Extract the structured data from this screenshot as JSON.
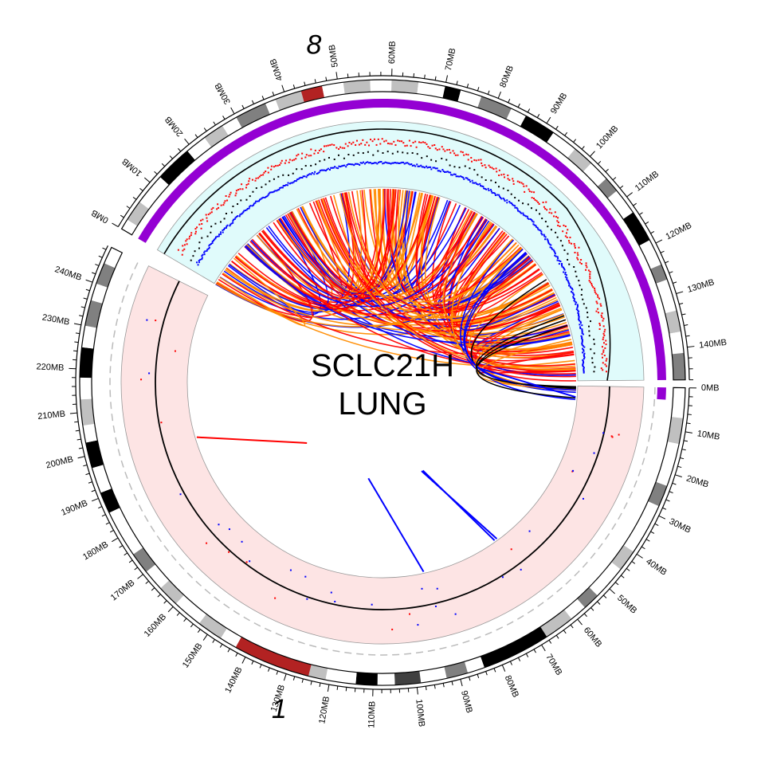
{
  "center": {
    "sample": "SCLC21H",
    "tissue": "LUNG"
  },
  "chromosomes": [
    {
      "name": "1",
      "label": "1",
      "length_mb": 249,
      "tick_labels": [
        "0MB",
        "10MB",
        "20MB",
        "30MB",
        "40MB",
        "50MB",
        "60MB",
        "70MB",
        "80MB",
        "90MB",
        "100MB",
        "110MB",
        "120MB",
        "130MB",
        "140MB",
        "150MB",
        "160MB",
        "170MB",
        "180MB",
        "190MB",
        "200MB",
        "210MB",
        "220MB",
        "230MB",
        "240MB"
      ],
      "bands": [
        {
          "s": 0,
          "e": 7,
          "c": "#ffffff"
        },
        {
          "s": 7,
          "e": 13,
          "c": "#c0c0c0"
        },
        {
          "s": 13,
          "e": 23,
          "c": "#ffffff"
        },
        {
          "s": 23,
          "e": 28,
          "c": "#808080"
        },
        {
          "s": 28,
          "e": 40,
          "c": "#ffffff"
        },
        {
          "s": 40,
          "e": 45,
          "c": "#c0c0c0"
        },
        {
          "s": 45,
          "e": 53,
          "c": "#ffffff"
        },
        {
          "s": 53,
          "e": 57,
          "c": "#808080"
        },
        {
          "s": 57,
          "e": 61,
          "c": "#ffffff"
        },
        {
          "s": 61,
          "e": 68,
          "c": "#c0c0c0"
        },
        {
          "s": 68,
          "e": 84,
          "c": "#000000"
        },
        {
          "s": 84,
          "e": 88,
          "c": "#ffffff"
        },
        {
          "s": 88,
          "e": 93,
          "c": "#808080"
        },
        {
          "s": 93,
          "e": 99,
          "c": "#ffffff"
        },
        {
          "s": 99,
          "e": 105,
          "c": "#404040"
        },
        {
          "s": 105,
          "e": 109,
          "c": "#ffffff"
        },
        {
          "s": 109,
          "e": 114,
          "c": "#000000"
        },
        {
          "s": 114,
          "e": 121,
          "c": "#ffffff"
        },
        {
          "s": 121,
          "e": 125,
          "c": "#c0c0c0"
        },
        {
          "s": 125,
          "e": 143,
          "c": "#b22222"
        },
        {
          "s": 143,
          "e": 147,
          "c": "#ffffff"
        },
        {
          "s": 147,
          "e": 153,
          "c": "#c0c0c0"
        },
        {
          "s": 153,
          "e": 160,
          "c": "#ffffff"
        },
        {
          "s": 160,
          "e": 165,
          "c": "#c0c0c0"
        },
        {
          "s": 165,
          "e": 170,
          "c": "#ffffff"
        },
        {
          "s": 170,
          "e": 175,
          "c": "#808080"
        },
        {
          "s": 175,
          "e": 186,
          "c": "#ffffff"
        },
        {
          "s": 186,
          "e": 191,
          "c": "#000000"
        },
        {
          "s": 191,
          "e": 197,
          "c": "#ffffff"
        },
        {
          "s": 197,
          "e": 203,
          "c": "#000000"
        },
        {
          "s": 203,
          "e": 207,
          "c": "#ffffff"
        },
        {
          "s": 207,
          "e": 213,
          "c": "#c0c0c0"
        },
        {
          "s": 213,
          "e": 218,
          "c": "#ffffff"
        },
        {
          "s": 218,
          "e": 225,
          "c": "#000000"
        },
        {
          "s": 225,
          "e": 230,
          "c": "#ffffff"
        },
        {
          "s": 230,
          "e": 236,
          "c": "#808080"
        },
        {
          "s": 236,
          "e": 240,
          "c": "#ffffff"
        },
        {
          "s": 240,
          "e": 245,
          "c": "#808080"
        },
        {
          "s": 245,
          "e": 249,
          "c": "#ffffff"
        }
      ]
    },
    {
      "name": "8",
      "label": "8",
      "length_mb": 146,
      "tick_labels": [
        "0MB",
        "10MB",
        "20MB",
        "30MB",
        "40MB",
        "50MB",
        "60MB",
        "70MB",
        "80MB",
        "90MB",
        "100MB",
        "110MB",
        "120MB",
        "130MB",
        "140MB"
      ],
      "bands": [
        {
          "s": 0,
          "e": 2,
          "c": "#ffffff"
        },
        {
          "s": 2,
          "e": 6,
          "c": "#c0c0c0"
        },
        {
          "s": 6,
          "e": 12,
          "c": "#ffffff"
        },
        {
          "s": 12,
          "e": 19,
          "c": "#000000"
        },
        {
          "s": 19,
          "e": 23,
          "c": "#ffffff"
        },
        {
          "s": 23,
          "e": 27,
          "c": "#c0c0c0"
        },
        {
          "s": 27,
          "e": 30,
          "c": "#ffffff"
        },
        {
          "s": 30,
          "e": 36,
          "c": "#808080"
        },
        {
          "s": 36,
          "e": 38,
          "c": "#ffffff"
        },
        {
          "s": 38,
          "e": 43,
          "c": "#c0c0c0"
        },
        {
          "s": 43,
          "e": 47,
          "c": "#b22222"
        },
        {
          "s": 47,
          "e": 51,
          "c": "#ffffff"
        },
        {
          "s": 51,
          "e": 56,
          "c": "#c0c0c0"
        },
        {
          "s": 56,
          "e": 60,
          "c": "#ffffff"
        },
        {
          "s": 60,
          "e": 65,
          "c": "#c0c0c0"
        },
        {
          "s": 65,
          "e": 70,
          "c": "#ffffff"
        },
        {
          "s": 70,
          "e": 73,
          "c": "#000000"
        },
        {
          "s": 73,
          "e": 77,
          "c": "#ffffff"
        },
        {
          "s": 77,
          "e": 83,
          "c": "#808080"
        },
        {
          "s": 83,
          "e": 86,
          "c": "#ffffff"
        },
        {
          "s": 86,
          "e": 92,
          "c": "#000000"
        },
        {
          "s": 92,
          "e": 97,
          "c": "#ffffff"
        },
        {
          "s": 97,
          "e": 101,
          "c": "#c0c0c0"
        },
        {
          "s": 101,
          "e": 105,
          "c": "#ffffff"
        },
        {
          "s": 105,
          "e": 108,
          "c": "#808080"
        },
        {
          "s": 108,
          "e": 113,
          "c": "#ffffff"
        },
        {
          "s": 113,
          "e": 119,
          "c": "#000000"
        },
        {
          "s": 119,
          "e": 124,
          "c": "#ffffff"
        },
        {
          "s": 124,
          "e": 127,
          "c": "#808080"
        },
        {
          "s": 127,
          "e": 133,
          "c": "#ffffff"
        },
        {
          "s": 133,
          "e": 137,
          "c": "#c0c0c0"
        },
        {
          "s": 137,
          "e": 141,
          "c": "#ffffff"
        },
        {
          "s": 141,
          "e": 146,
          "c": "#808080"
        }
      ]
    }
  ],
  "colors": {
    "amplified_track_bg": "#e0fbfb",
    "normal_track_bg": "#fde4e4",
    "cn_bar": "#9400d3",
    "point_high": "#ff0000",
    "point_mid": "#000000",
    "point_low": "#0000ff",
    "link_red": "#ff0000",
    "link_orange": "#ff8c00",
    "link_blue": "#0000ff",
    "link_black": "#000000",
    "dashed_ring": "#bbbbbb"
  },
  "cn_segments": [
    {
      "chrom": "8",
      "start_mb": 0,
      "end_mb": 146
    },
    {
      "chrom": "1",
      "start_mb": 0,
      "end_mb": 3
    }
  ],
  "links_single": [
    {
      "chrom1": "1",
      "pos1": 197,
      "chrom2": "1",
      "pos2": 170,
      "color": "link_red"
    },
    {
      "chrom1": "1",
      "pos1": 93,
      "chrom2": "1",
      "pos2": 118,
      "color": "link_blue"
    },
    {
      "chrom1": "1",
      "pos1": 65,
      "chrom2": "1",
      "pos2": 78,
      "color": "link_blue"
    },
    {
      "chrom1": "1",
      "pos1": 64,
      "chrom2": "1",
      "pos2": 79,
      "color": "link_blue"
    },
    {
      "chrom1": "1",
      "pos1": 4,
      "chrom2": "8",
      "pos2": 138,
      "color": "link_blue"
    }
  ]
}
